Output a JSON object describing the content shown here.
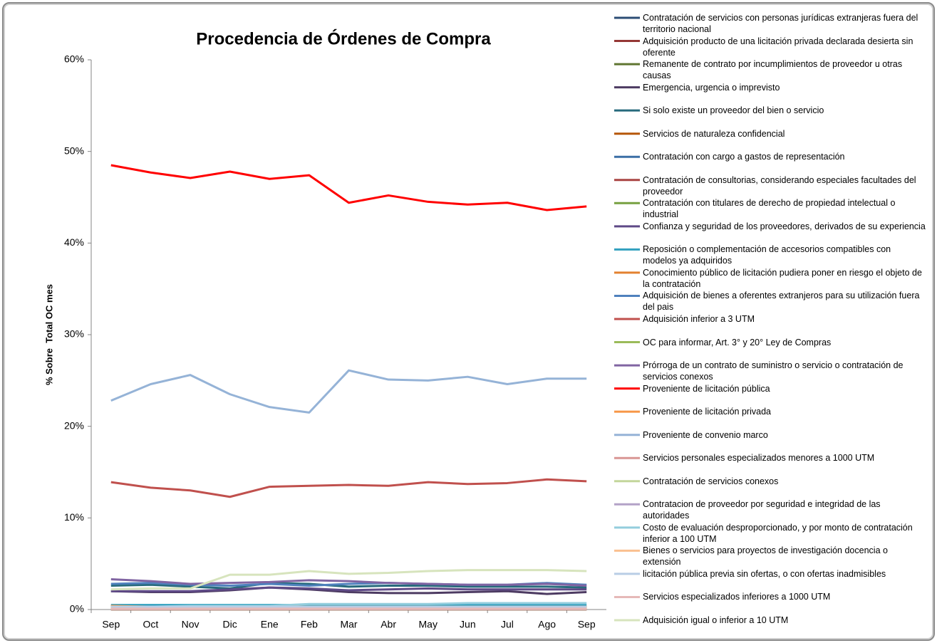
{
  "chart_data": {
    "type": "line",
    "title": "Procedencia de Órdenes de Compra",
    "y_label": "% Sobre  Total OC mes",
    "categories": [
      "Sep",
      "Oct",
      "Nov",
      "Dic",
      "Ene",
      "Feb",
      "Mar",
      "Abr",
      "May",
      "Jun",
      "Jul",
      "Ago",
      "Sep"
    ],
    "ylim": [
      0,
      60
    ],
    "yticks": [
      {
        "value": 0,
        "label": "0%"
      },
      {
        "value": 10,
        "label": "10%"
      },
      {
        "value": 20,
        "label": "20%"
      },
      {
        "value": 30,
        "label": "30%"
      },
      {
        "value": 40,
        "label": "40%"
      },
      {
        "value": 50,
        "label": "50%"
      },
      {
        "value": 60,
        "label": "60%"
      }
    ],
    "legend": "right",
    "series": [
      {
        "name": "Contratación de servicios con personas jurídicas extranjeras fuera del territorio nacional",
        "color": "#2c4d75",
        "values": [
          0.01,
          0.01,
          0.01,
          0.01,
          0.01,
          0.01,
          0.01,
          0.01,
          0.01,
          0.01,
          0.01,
          0.01,
          0.01
        ]
      },
      {
        "name": "Adquisición producto de una licitación privada declarada desierta sin oferente",
        "color": "#953735",
        "values": [
          0.1,
          0.1,
          0.1,
          0.1,
          0.1,
          0.1,
          0.1,
          0.1,
          0.1,
          0.1,
          0.1,
          0.1,
          0.1
        ]
      },
      {
        "name": "Remanente de contrato por incumplimientos de proveedor u otras causas",
        "color": "#5f7530",
        "values": [
          0.4,
          0.4,
          0.4,
          0.3,
          0.3,
          0.3,
          0.3,
          0.3,
          0.3,
          0.3,
          0.3,
          0.3,
          0.3
        ]
      },
      {
        "name": "Emergencia, urgencia o imprevisto",
        "color": "#4d3b62",
        "values": [
          2.0,
          1.9,
          1.9,
          2.1,
          2.4,
          2.2,
          1.9,
          1.8,
          1.8,
          1.9,
          2.0,
          1.7,
          1.9
        ]
      },
      {
        "name": "Si solo existe un proveedor del bien o servicio",
        "color": "#276a7c",
        "values": [
          2.6,
          2.7,
          2.5,
          2.3,
          2.9,
          2.8,
          2.5,
          2.6,
          2.6,
          2.5,
          2.5,
          2.5,
          2.4
        ]
      },
      {
        "name": "Servicios de naturaleza confidencial",
        "color": "#b65708",
        "values": [
          0.05,
          0.05,
          0.05,
          0.05,
          0.05,
          0.05,
          0.05,
          0.05,
          0.05,
          0.05,
          0.05,
          0.05,
          0.05
        ]
      },
      {
        "name": "Contratación con cargo a gastos de representación",
        "color": "#3a6ea5",
        "values": [
          0.1,
          0.1,
          0.1,
          0.1,
          0.1,
          0.1,
          0.1,
          0.1,
          0.1,
          0.1,
          0.1,
          0.1,
          0.1
        ]
      },
      {
        "name": "Contratación de consultorias, considerando especiales facultades del proveedor",
        "color": "#a94442",
        "values": [
          0.05,
          0.05,
          0.05,
          0.05,
          0.05,
          0.05,
          0.05,
          0.05,
          0.05,
          0.05,
          0.05,
          0.05,
          0.05
        ]
      },
      {
        "name": "Contratación con titulares de derecho de propiedad intelectual o industrial",
        "color": "#77a040",
        "values": [
          0.1,
          0.1,
          0.1,
          0.1,
          0.1,
          0.1,
          0.1,
          0.1,
          0.1,
          0.1,
          0.1,
          0.1,
          0.1
        ]
      },
      {
        "name": "Confianza y seguridad de los proveedores, derivados de su experiencia",
        "color": "#5f4a87",
        "values": [
          2.0,
          2.0,
          2.0,
          2.2,
          2.4,
          2.3,
          2.1,
          2.2,
          2.3,
          2.2,
          2.2,
          2.2,
          2.2
        ]
      },
      {
        "name": "Reposición o complementación de accesorios compatibles con modelos ya adquiridos",
        "color": "#31a0bf",
        "values": [
          0.5,
          0.5,
          0.5,
          0.5,
          0.5,
          0.5,
          0.5,
          0.5,
          0.5,
          0.5,
          0.5,
          0.5,
          0.5
        ]
      },
      {
        "name": "Conocimiento público de licitación pudiera poner en riesgo el objeto de la contratación",
        "color": "#e3812f",
        "values": [
          0.02,
          0.02,
          0.02,
          0.02,
          0.02,
          0.02,
          0.02,
          0.02,
          0.02,
          0.02,
          0.02,
          0.02,
          0.02
        ]
      },
      {
        "name": "Adquisición de bienes a oferentes extranjeros para su utilización fuera del pais",
        "color": "#4f81bd",
        "values": [
          2.8,
          2.9,
          2.7,
          2.6,
          2.8,
          2.6,
          2.8,
          2.9,
          2.8,
          2.7,
          2.7,
          2.9,
          2.7
        ]
      },
      {
        "name": "Adquisición inferior a 3 UTM",
        "color": "#c0504d",
        "values": [
          13.9,
          13.3,
          13.0,
          12.3,
          13.4,
          13.5,
          13.6,
          13.5,
          13.9,
          13.7,
          13.8,
          14.2,
          14.0
        ]
      },
      {
        "name": "OC para informar, Art. 3° y 20° Ley de Compras",
        "color": "#9bbb59",
        "values": [
          0.3,
          0.3,
          0.3,
          0.3,
          0.3,
          0.3,
          0.3,
          0.3,
          0.3,
          0.3,
          0.3,
          0.3,
          0.3
        ]
      },
      {
        "name": "Prórroga de un contrato de suministro o servicio o contratación de servicios conexos",
        "color": "#8064a2",
        "values": [
          3.3,
          3.1,
          2.8,
          2.9,
          3.0,
          3.2,
          3.1,
          2.9,
          2.8,
          2.7,
          2.7,
          2.8,
          2.6
        ]
      },
      {
        "name": "Proveniente de licitación pública",
        "color": "#ff0000",
        "values": [
          48.5,
          47.7,
          47.1,
          47.8,
          47.0,
          47.4,
          44.4,
          45.2,
          44.5,
          44.2,
          44.4,
          43.6,
          44.0
        ]
      },
      {
        "name": "Proveniente de licitación privada",
        "color": "#f79646",
        "values": [
          0.4,
          0.3,
          0.3,
          0.3,
          0.3,
          0.3,
          0.3,
          0.3,
          0.3,
          0.3,
          0.3,
          0.3,
          0.3
        ]
      },
      {
        "name": "Proveniente de convenio marco",
        "color": "#95b3d7",
        "values": [
          22.8,
          24.6,
          25.6,
          23.5,
          22.1,
          21.5,
          26.1,
          25.1,
          25.0,
          25.4,
          24.6,
          25.2,
          25.2
        ]
      },
      {
        "name": "Servicios personales especializados menores a 1000 UTM",
        "color": "#d99694",
        "values": [
          0.2,
          0.2,
          0.2,
          0.2,
          0.2,
          0.2,
          0.2,
          0.2,
          0.2,
          0.2,
          0.2,
          0.2,
          0.2
        ]
      },
      {
        "name": "Contratación de servicios conexos",
        "color": "#c3d69b",
        "values": [
          0.1,
          0.1,
          0.1,
          0.1,
          0.1,
          0.1,
          0.1,
          0.1,
          0.1,
          0.1,
          0.1,
          0.1,
          0.1
        ]
      },
      {
        "name": "Contratacion de proveedor por seguridad e integridad de las autoridades",
        "color": "#b3a2c7",
        "values": [
          0.05,
          0.05,
          0.05,
          0.05,
          0.05,
          0.05,
          0.05,
          0.05,
          0.05,
          0.05,
          0.05,
          0.05,
          0.05
        ]
      },
      {
        "name": "Costo de evaluación desproporcionado, y por monto de contratación inferior a 100 UTM",
        "color": "#93cddd",
        "values": [
          0.3,
          0.3,
          0.4,
          0.4,
          0.4,
          0.6,
          0.6,
          0.6,
          0.6,
          0.7,
          0.7,
          0.7,
          0.7
        ]
      },
      {
        "name": "Bienes o servicios para proyectos de investigación docencia o extensión",
        "color": "#fac090",
        "values": [
          0.1,
          0.1,
          0.1,
          0.1,
          0.1,
          0.1,
          0.1,
          0.1,
          0.1,
          0.1,
          0.1,
          0.1,
          0.1
        ]
      },
      {
        "name": "licitación pública previa sin ofertas, o con ofertas inadmisibles",
        "color": "#b9cde5",
        "values": [
          0.3,
          0.3,
          0.3,
          0.3,
          0.3,
          0.3,
          0.3,
          0.3,
          0.3,
          0.3,
          0.3,
          0.3,
          0.3
        ]
      },
      {
        "name": "Servicios especializados inferiores a 1000 UTM",
        "color": "#e6b9b8",
        "values": [
          0.1,
          0.1,
          0.1,
          0.1,
          0.1,
          0.1,
          0.1,
          0.1,
          0.1,
          0.1,
          0.1,
          0.1,
          0.1
        ]
      },
      {
        "name": "Adquisición igual o inferior a 10 UTM",
        "color": "#d7e4bd",
        "values": [
          2.2,
          2.3,
          2.3,
          3.8,
          3.8,
          4.2,
          3.9,
          4.0,
          4.2,
          4.3,
          4.3,
          4.3,
          4.2
        ]
      }
    ]
  }
}
